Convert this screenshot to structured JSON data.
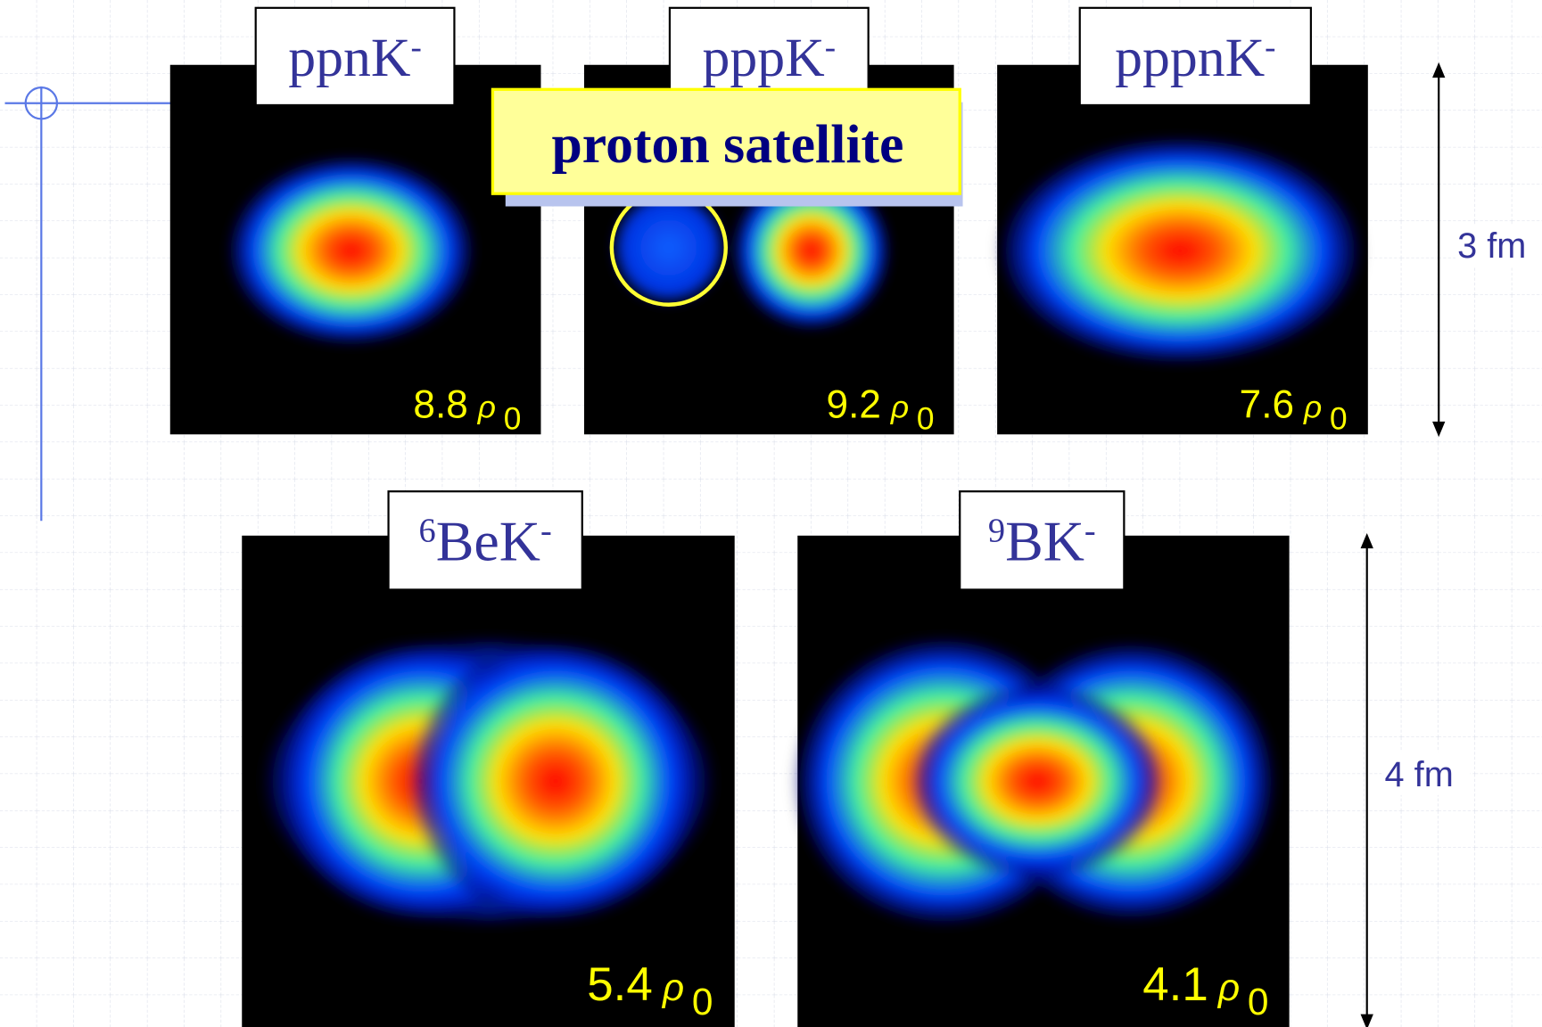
{
  "callout": "proton satellite",
  "panels": [
    {
      "label": {
        "main": "ppnK",
        "sup": "-"
      },
      "density": "8.8",
      "rho": "ρ",
      "rho_sub": "0"
    },
    {
      "label": {
        "main": "pppK",
        "sup": "-"
      },
      "density": "9.2",
      "rho": "ρ",
      "rho_sub": "0"
    },
    {
      "label": {
        "main": "pppnK",
        "sup": "-"
      },
      "density": "7.6",
      "rho": "ρ",
      "rho_sub": "0"
    },
    {
      "label": {
        "pre": "6",
        "main": "BeK",
        "sup": "-"
      },
      "density": "5.4",
      "rho": "ρ",
      "rho_sub": "0"
    },
    {
      "label": {
        "pre": "9",
        "main": "BK",
        "sup": "-"
      },
      "density": "4.1",
      "rho": "ρ",
      "rho_sub": "0"
    }
  ],
  "scales": [
    "3 fm",
    "4 fm"
  ]
}
